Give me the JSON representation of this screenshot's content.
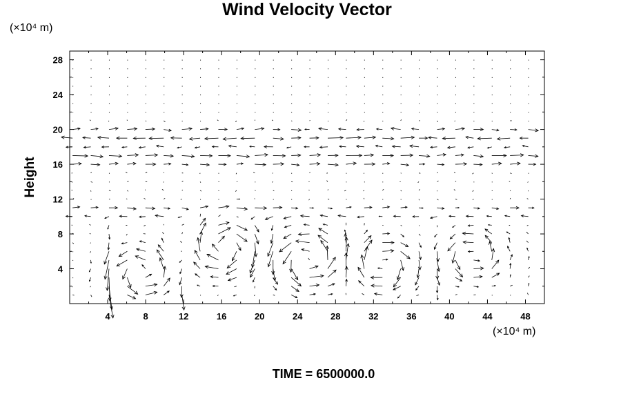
{
  "chart_data": {
    "type": "vector_field",
    "title": "Wind Velocity Vector",
    "ylabel": "Height",
    "xlabel": "",
    "x_unit_label": "(×10⁴ m)",
    "y_unit_label": "(×10⁴ m)",
    "footer": "TIME = 6500000.0",
    "xlim": [
      0,
      50
    ],
    "ylim": [
      0,
      29
    ],
    "x_ticks": [
      4,
      8,
      12,
      16,
      20,
      24,
      28,
      32,
      36,
      40,
      44,
      48
    ],
    "y_ticks": [
      4,
      8,
      12,
      16,
      20,
      24,
      28
    ],
    "grid": false,
    "grid_x_spacing": 1.92,
    "grid_y_spacing": 1.0,
    "vector_color": "#000000",
    "bands": [
      {
        "y": 20,
        "dir": 1,
        "mag": 0.8
      },
      {
        "y": 19,
        "dir": -1,
        "mag": 1.2
      },
      {
        "y": 18,
        "dir": -1,
        "mag": 0.7
      },
      {
        "y": 17,
        "dir": 1,
        "mag": 1.2
      },
      {
        "y": 16,
        "dir": 1,
        "mag": 0.9
      },
      {
        "y": 11,
        "dir": 1,
        "mag": 0.7
      },
      {
        "y": 10,
        "dir": -1,
        "mag": 0.6
      }
    ],
    "band_reversals": [
      {
        "y": 20,
        "from_x": 24,
        "to_x": 38,
        "dir": -1
      },
      {
        "y": 19,
        "from_x": 20,
        "to_x": 38,
        "dir": 1
      }
    ],
    "vortices": [
      {
        "x": 7.5,
        "y": 3.5,
        "r": 3.2,
        "sense": 1
      },
      {
        "x": 16.5,
        "y": 6.5,
        "r": 3.5,
        "sense": -1
      },
      {
        "x": 25.0,
        "y": 5.0,
        "r": 3.6,
        "sense": 1
      },
      {
        "x": 33.0,
        "y": 4.5,
        "r": 3.2,
        "sense": -1
      },
      {
        "x": 42.5,
        "y": 5.5,
        "r": 3.0,
        "sense": 1
      }
    ],
    "updrafts": [
      {
        "x": 4.0,
        "dir": -1
      },
      {
        "x": 12.0,
        "dir": -1
      },
      {
        "x": 20.5,
        "dir": 1
      },
      {
        "x": 28.0,
        "dir": -1
      },
      {
        "x": 38.0,
        "dir": -1
      },
      {
        "x": 47.5,
        "dir": 1
      }
    ]
  }
}
